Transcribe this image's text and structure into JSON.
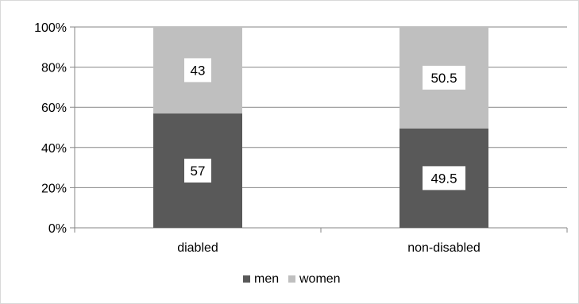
{
  "chart_data": {
    "type": "bar",
    "stacked": true,
    "categories": [
      "diabled",
      "non-disabled"
    ],
    "series": [
      {
        "name": "men",
        "values": [
          57,
          49.5
        ],
        "color": "#595959"
      },
      {
        "name": "women",
        "values": [
          43,
          50.5
        ],
        "color": "#bfbfbf"
      }
    ],
    "data_labels": [
      [
        "57",
        "49.5"
      ],
      [
        "43",
        "50.5"
      ]
    ],
    "yticks": [
      "0%",
      "20%",
      "40%",
      "60%",
      "80%",
      "100%"
    ],
    "ylim": [
      0,
      100
    ],
    "title": "",
    "xlabel": "",
    "ylabel": "",
    "grid": true,
    "legend": "bottom"
  }
}
